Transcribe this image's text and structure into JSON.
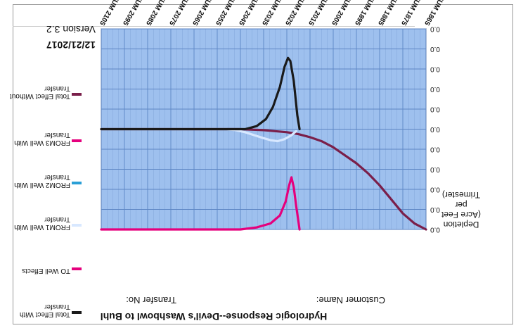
{
  "header": {
    "title": "Hydrologic Response--Devil's Washbowl to Buhl",
    "customer_label": "Customer Name:",
    "transfer_label": "Transfer No:",
    "date": "12/21/2017",
    "version": "Version 3.2"
  },
  "chart_data": {
    "type": "line",
    "ylabel": "Depletion\n(Acre Feet per Trimester)",
    "x_ticks": [
      "SUM 1865",
      "SUM 1875",
      "SUM 1885",
      "SUM 1895",
      "SUM 2005",
      "SUM 2015",
      "SUM 2025",
      "SUM 2035",
      "SUM 2045",
      "SUM 2055",
      "SUM 2065",
      "SUM 2075",
      "SUM 2085",
      "SUM 2095",
      "SUM 2105"
    ],
    "y_ticks": [
      "0.0",
      "0.0",
      "0.0",
      "0.0",
      "0.0",
      "0.0",
      "0.0",
      "0.0",
      "0.0",
      "0.0",
      "0.0"
    ],
    "x_range": [
      0,
      14
    ],
    "y_range": [
      0,
      10
    ],
    "grid": true,
    "legend_position": "right",
    "series": [
      {
        "name": "Total Effect Without Transfer",
        "color": "#7a1f4a",
        "points": [
          [
            0,
            10
          ],
          [
            0.5,
            9.7
          ],
          [
            1,
            9.2
          ],
          [
            1.5,
            8.5
          ],
          [
            2,
            7.8
          ],
          [
            2.5,
            7.2
          ],
          [
            3,
            6.7
          ],
          [
            3.5,
            6.3
          ],
          [
            4,
            5.9
          ],
          [
            4.5,
            5.6
          ],
          [
            5,
            5.4
          ],
          [
            5.5,
            5.25
          ],
          [
            6,
            5.15
          ],
          [
            7,
            5.05
          ],
          [
            8,
            5.0
          ],
          [
            10,
            5.0
          ],
          [
            12,
            5.0
          ],
          [
            14,
            5.0
          ]
        ]
      },
      {
        "name": "FROM3 Well With Transfer",
        "color": "#e5007d",
        "points": [
          [
            5.45,
            10
          ],
          [
            5.5,
            9.6
          ],
          [
            5.6,
            8.8
          ],
          [
            5.7,
            7.9
          ],
          [
            5.8,
            7.4
          ],
          [
            5.9,
            7.8
          ],
          [
            6.05,
            8.6
          ],
          [
            6.3,
            9.3
          ],
          [
            6.7,
            9.7
          ],
          [
            7.3,
            9.9
          ],
          [
            8,
            10
          ],
          [
            10,
            10
          ],
          [
            12,
            10
          ],
          [
            14,
            10
          ]
        ]
      },
      {
        "name": "FROM1 Well With Transfer",
        "color": "#d8e8ff",
        "points": [
          [
            5.6,
            5.1
          ],
          [
            5.8,
            5.3
          ],
          [
            6.1,
            5.5
          ],
          [
            6.4,
            5.6
          ],
          [
            6.7,
            5.55
          ],
          [
            7.0,
            5.45
          ],
          [
            7.4,
            5.3
          ],
          [
            7.8,
            5.15
          ],
          [
            8.2,
            5.05
          ],
          [
            8.6,
            5.0
          ],
          [
            9.5,
            5.0
          ],
          [
            14,
            5.0
          ]
        ]
      },
      {
        "name": "Total Effect With Transfer",
        "color": "#1a1a1a",
        "points": [
          [
            5.45,
            5.0
          ],
          [
            5.55,
            4.3
          ],
          [
            5.7,
            2.6
          ],
          [
            5.85,
            1.6
          ],
          [
            5.95,
            1.45
          ],
          [
            6.1,
            1.9
          ],
          [
            6.3,
            2.9
          ],
          [
            6.6,
            3.9
          ],
          [
            6.9,
            4.5
          ],
          [
            7.3,
            4.85
          ],
          [
            7.8,
            5.0
          ],
          [
            14,
            5.0
          ]
        ]
      }
    ],
    "legend_entries": [
      {
        "name": "Total Effect With Transfer",
        "color": "#1a1a1a"
      },
      {
        "name": "TO Well Effects",
        "color": "#e5007d"
      },
      {
        "name": "FROM1 Well With Transfer",
        "color": "#d8e8ff"
      },
      {
        "name": "FROM2 Well With Transfer",
        "color": "#2a9fd6"
      },
      {
        "name": "FROM3 Well With Transfer",
        "color": "#e5007d"
      },
      {
        "name": "Total Effect Without Transfer",
        "color": "#7a1f4a"
      }
    ]
  },
  "colors": {
    "plot_background": "#9ec0ee",
    "grid": "#5d86c4",
    "text": "#111111"
  }
}
